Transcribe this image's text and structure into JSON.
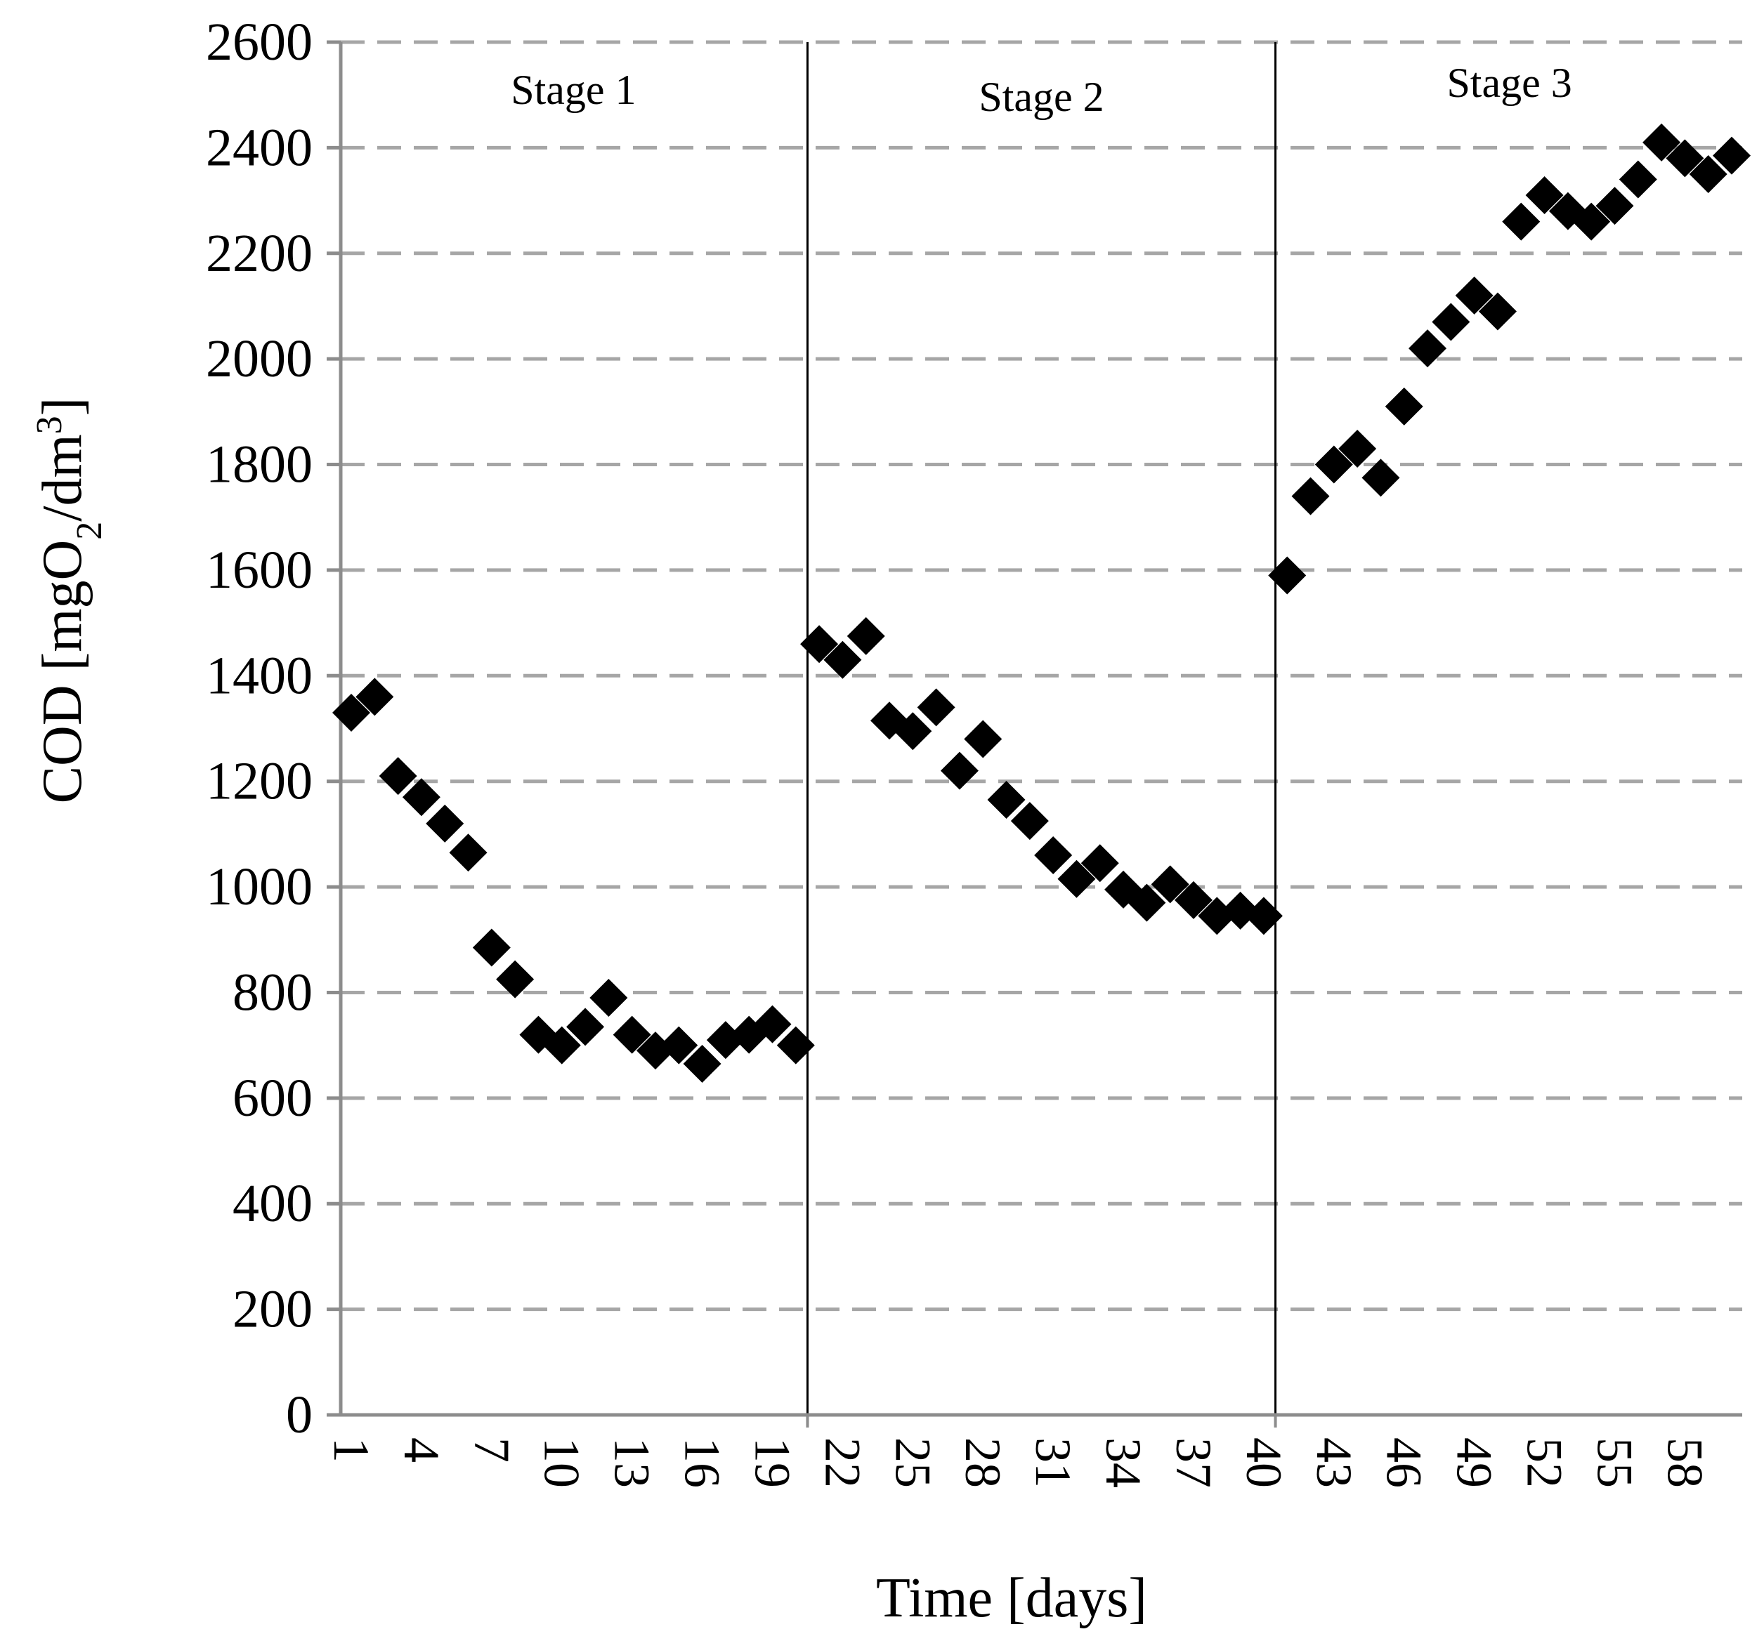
{
  "chart_data": {
    "type": "scatter",
    "xlabel": "Time [days]",
    "ylabel": {
      "prefix": "COD [mgO",
      "sub": "2",
      "mid": "/dm",
      "sup": "3",
      "suffix": "]"
    },
    "xlim": [
      1,
      60
    ],
    "ylim": [
      0,
      2600
    ],
    "y_ticks": [
      0,
      200,
      400,
      600,
      800,
      1000,
      1200,
      1400,
      1600,
      1800,
      2000,
      2200,
      2400,
      2600
    ],
    "x_ticks": [
      1,
      4,
      7,
      10,
      13,
      16,
      19,
      22,
      25,
      28,
      31,
      34,
      37,
      40,
      43,
      46,
      49,
      52,
      55,
      58
    ],
    "grid": "horizontal-dashed",
    "marker": "diamond",
    "marker_color": "#000000",
    "stage_dividers": [
      20.5,
      40.5
    ],
    "stage_labels": [
      "Stage 1",
      "Stage 2",
      "Stage 3"
    ],
    "x": [
      1,
      2,
      3,
      4,
      5,
      6,
      7,
      8,
      9,
      10,
      11,
      12,
      13,
      14,
      15,
      16,
      17,
      18,
      19,
      20,
      21,
      22,
      23,
      24,
      25,
      26,
      27,
      28,
      29,
      30,
      31,
      32,
      33,
      34,
      35,
      36,
      37,
      38,
      39,
      40,
      41,
      42,
      43,
      44,
      45,
      46,
      47,
      48,
      49,
      50,
      51,
      52,
      53,
      54,
      55,
      56,
      57,
      58,
      59,
      60
    ],
    "y": [
      1330,
      1360,
      1210,
      1170,
      1120,
      1065,
      885,
      825,
      720,
      700,
      735,
      790,
      720,
      690,
      700,
      665,
      710,
      720,
      740,
      700,
      1460,
      1430,
      1475,
      1315,
      1295,
      1340,
      1220,
      1280,
      1165,
      1125,
      1060,
      1015,
      1045,
      995,
      970,
      1005,
      975,
      945,
      955,
      945,
      1590,
      1740,
      1800,
      1830,
      1775,
      1910,
      2020,
      2070,
      2120,
      2090,
      2260,
      2310,
      2280,
      2260,
      2290,
      2340,
      2410,
      2380,
      2350,
      2385
    ]
  }
}
